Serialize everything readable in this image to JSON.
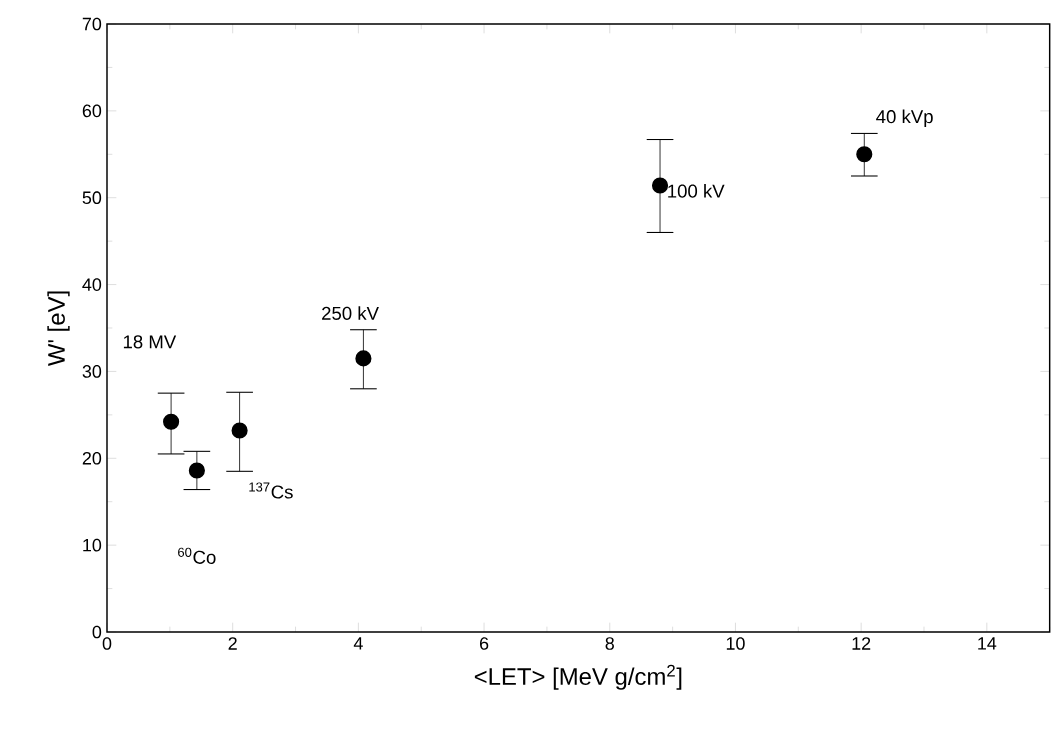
{
  "chart_data": {
    "type": "scatter",
    "xlabel": "<LET> [MeV g/cm$^{2}$]",
    "ylabel": "W' [eV]",
    "x": [
      1.02,
      1.43,
      2.11,
      4.08,
      8.8,
      12.05
    ],
    "values": [
      24.2,
      18.6,
      23.2,
      31.5,
      51.4,
      55.0
    ],
    "errors": [
      [
        20.5,
        27.5
      ],
      [
        16.4,
        20.8
      ],
      [
        18.5,
        27.6
      ],
      [
        28.0,
        34.8
      ],
      [
        46.0,
        56.7
      ],
      [
        52.5,
        57.4
      ]
    ],
    "color": "#000000",
    "marker": "circle",
    "xlim": [
      0,
      15
    ],
    "xticks": [
      0,
      2,
      4,
      6,
      8,
      10,
      12,
      14
    ],
    "ylim": [
      0,
      70
    ],
    "yticks": [
      0,
      10,
      20,
      30,
      40,
      50,
      60,
      70
    ],
    "annotations": [
      "18 MV",
      "$^{60}$Co",
      {
        "text": "$^{137}$Cs",
        "x": 2.11,
        "y": 23.2
      },
      {
        "text": "250 kV",
        "x": 4.08,
        "y": 31.5
      },
      {
        "text": "100 kV",
        "x": 8.8,
        "y": 51.4
      },
      {
        "text": "40 kVp",
        "x": 12.05,
        "y": 55.0
      }
    ]
  }
}
